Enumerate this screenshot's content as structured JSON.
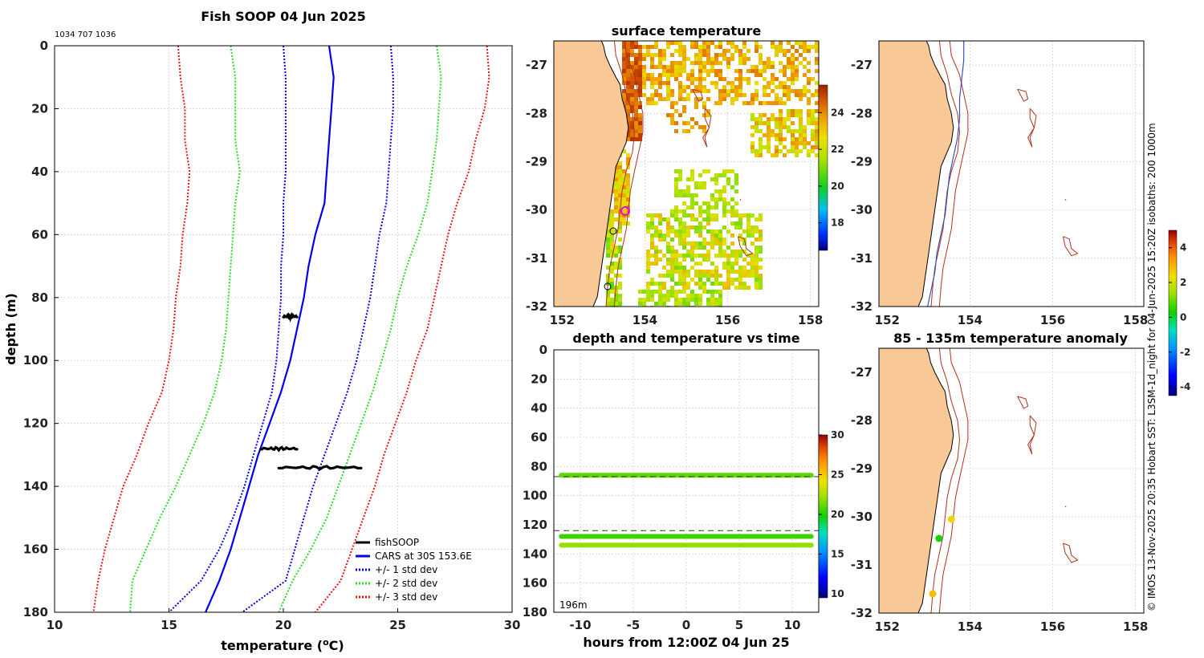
{
  "colors": {
    "land": "#f8c896",
    "red": "#ee1111",
    "green": "#22dd22",
    "blue": "#0000ee",
    "grid": "#c8c8c8",
    "isobath": "#b03020",
    "isobath_blue": "#3a50c0"
  },
  "chart_data": [
    {
      "id": "profile",
      "type": "line",
      "title": "Fish SOOP 04 Jun 2025",
      "subtitle": "1034 707 1036",
      "xlabel": "temperature (",
      "xlabel_sup": "o",
      "xlabel_tail": "C)",
      "ylabel": "depth (m)",
      "xlim": [
        10,
        30
      ],
      "ylim": [
        0,
        180
      ],
      "xticks": [
        10,
        15,
        20,
        25,
        30
      ],
      "yticks": [
        0,
        20,
        40,
        60,
        80,
        100,
        120,
        140,
        160,
        180
      ],
      "depths": [
        0,
        10,
        20,
        30,
        40,
        50,
        60,
        70,
        80,
        90,
        100,
        110,
        120,
        130,
        140,
        150,
        160,
        170,
        180
      ],
      "series": [
        {
          "name": "CARS at 30S 153.6E",
          "style": "solid",
          "color": "blue",
          "values": [
            22.0,
            22.2,
            22.1,
            22.0,
            21.9,
            21.8,
            21.4,
            21.1,
            20.9,
            20.6,
            20.3,
            19.9,
            19.4,
            18.9,
            18.5,
            18.1,
            17.7,
            17.2,
            16.6
          ]
        },
        {
          "name": "+/- 1 std dev",
          "style": "dotted",
          "color": "blue",
          "values": [
            20.0,
            20.1,
            20.1,
            20.1,
            20.1,
            20.0,
            20.0,
            19.9,
            19.9,
            19.8,
            19.7,
            19.5,
            19.1,
            18.7,
            18.3,
            17.8,
            17.2,
            16.4,
            15.0
          ]
        },
        {
          "name": "+/- 1 std dev upper",
          "style": "dotted",
          "color": "blue",
          "values": [
            24.7,
            24.8,
            24.8,
            24.7,
            24.6,
            24.5,
            24.2,
            24.0,
            23.8,
            23.5,
            23.2,
            22.8,
            22.3,
            21.8,
            21.3,
            20.9,
            20.5,
            20.1,
            18.2
          ]
        },
        {
          "name": "+/- 2 std dev",
          "style": "dotted",
          "color": "green",
          "values": [
            17.7,
            17.9,
            17.9,
            17.9,
            18.1,
            17.9,
            17.8,
            17.7,
            17.6,
            17.5,
            17.3,
            17.0,
            16.5,
            15.9,
            15.3,
            14.6,
            14.0,
            13.4,
            13.3
          ]
        },
        {
          "name": "+/- 2 std dev upper",
          "style": "dotted",
          "color": "green",
          "values": [
            26.7,
            26.9,
            26.8,
            26.7,
            26.5,
            26.3,
            25.9,
            25.4,
            25.0,
            24.7,
            24.3,
            23.9,
            23.4,
            22.9,
            22.4,
            21.9,
            21.2,
            20.4,
            19.8
          ]
        },
        {
          "name": "+/- 3 std dev",
          "style": "dotted",
          "color": "red",
          "values": [
            15.4,
            15.5,
            15.7,
            15.7,
            15.9,
            15.8,
            15.6,
            15.5,
            15.3,
            15.2,
            15.0,
            14.7,
            14.1,
            13.6,
            13.0,
            12.6,
            12.2,
            11.9,
            11.7
          ]
        },
        {
          "name": "+/- 3 std dev upper",
          "style": "dotted",
          "color": "red",
          "values": [
            28.9,
            29.0,
            28.8,
            28.4,
            28.1,
            27.6,
            27.2,
            26.9,
            26.6,
            26.3,
            25.8,
            25.4,
            24.9,
            24.4,
            24.0,
            23.5,
            23.0,
            22.5,
            21.4
          ]
        }
      ],
      "fishsoop": [
        {
          "depth": 86,
          "t_start": 20.0,
          "t_end": 20.6
        },
        {
          "depth": 128,
          "t_start": 19.0,
          "t_end": 20.6
        },
        {
          "depth": 134,
          "t_start": 19.8,
          "t_end": 23.4
        }
      ],
      "legend": [
        "fishSOOP",
        "CARS at 30S 153.6E",
        "+/- 1 std dev",
        "+/- 2 std dev",
        "+/- 3 std dev"
      ]
    },
    {
      "id": "sst_map",
      "type": "heatmap",
      "title": "surface temperature",
      "xticks": [
        152,
        154,
        156,
        158
      ],
      "yticks": [
        -27,
        -28,
        -29,
        -30,
        -31,
        -32
      ],
      "colorbar_ticks": [
        24,
        22,
        20,
        18
      ],
      "colorbar_range": [
        16.5,
        25.5
      ]
    },
    {
      "id": "depth_time",
      "type": "scatter",
      "title": "depth and temperature vs time",
      "xlabel": "hours from 12:00Z 04 Jun 25",
      "xlim": [
        -12.5,
        12.5
      ],
      "ylim": [
        0,
        180
      ],
      "xticks": [
        -10,
        -5,
        0,
        5,
        10
      ],
      "yticks": [
        0,
        20,
        40,
        60,
        80,
        100,
        120,
        140,
        160,
        180
      ],
      "bands": [
        {
          "depth": 86,
          "temp": 21
        },
        {
          "depth": 128,
          "temp": 20.5
        },
        {
          "depth": 134,
          "temp": 22
        }
      ],
      "dashed_depths": [
        87,
        124
      ],
      "annotation": "196m",
      "colorbar_ticks": [
        30,
        25,
        20,
        15,
        10
      ],
      "colorbar_range": [
        9.5,
        30
      ]
    },
    {
      "id": "bathy_map",
      "type": "line",
      "title": "",
      "xticks": [
        152,
        154,
        156,
        158
      ],
      "yticks": [
        -27,
        -28,
        -29,
        -30,
        -31,
        -32
      ]
    },
    {
      "id": "anomaly_map",
      "type": "scatter",
      "title": "85 - 135m temperature anomaly",
      "xticks": [
        152,
        154,
        156,
        158
      ],
      "yticks": [
        -27,
        -28,
        -29,
        -30,
        -31,
        -32
      ],
      "points": [
        {
          "lon": 153.55,
          "lat": -30.05,
          "anomaly": 2.5
        },
        {
          "lon": 153.25,
          "lat": -30.45,
          "anomaly": 0.3
        },
        {
          "lon": 153.1,
          "lat": -31.6,
          "anomaly": 2.8
        }
      ],
      "colorbar_ticks": [
        4,
        2,
        0,
        -2,
        -4
      ],
      "colorbar_range": [
        -4.5,
        5
      ]
    }
  ],
  "side_note": "© IMOS 13-Nov-2025 20:35 Hobart SST: L3SM-1d_night for 04-Jun-2025 15:20Z isobaths: 200  1000m"
}
